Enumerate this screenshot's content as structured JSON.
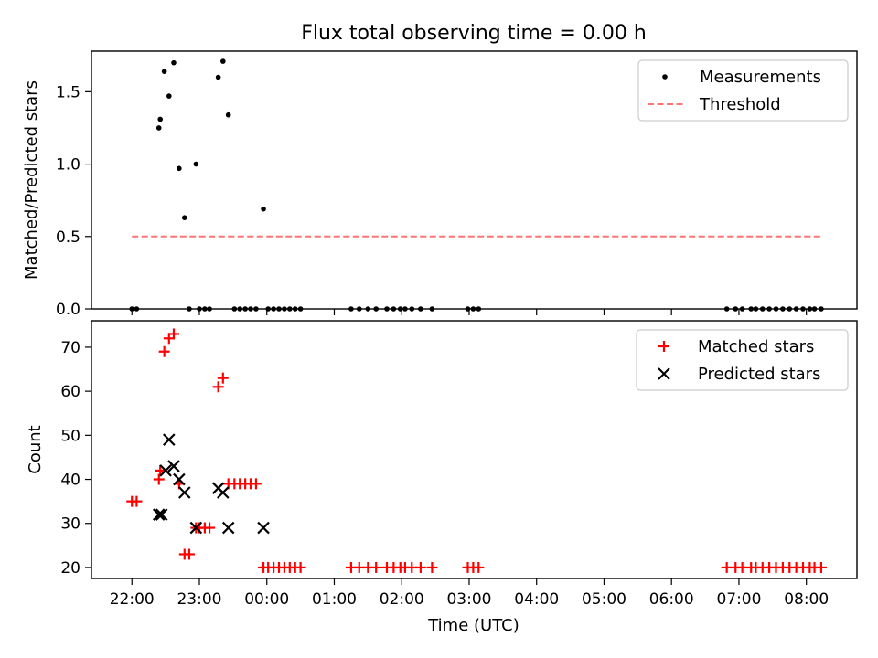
{
  "chart_data": [
    {
      "type": "scatter",
      "title": "Flux total observing time = 0.00 h",
      "xlabel": "",
      "ylabel": "Matched/Predicted stars",
      "x_unit": "hours from 00:00 UTC",
      "xlim": [
        -2.6,
        8.75
      ],
      "ylim": [
        0,
        1.78
      ],
      "yticks": [
        0.0,
        0.5,
        1.0,
        1.5
      ],
      "ytick_labels": [
        "0.0",
        "0.5",
        "1.0",
        "1.5"
      ],
      "legend_location": "upper right",
      "grid": false,
      "series": [
        {
          "name": "Measurements",
          "color": "#000000",
          "marker": "dot",
          "points": [
            [
              -2.0,
              0.0
            ],
            [
              -1.93,
              0.0
            ],
            [
              -1.6,
              1.25
            ],
            [
              -1.58,
              1.31
            ],
            [
              -1.52,
              1.64
            ],
            [
              -1.45,
              1.47
            ],
            [
              -1.38,
              1.7
            ],
            [
              -1.3,
              0.97
            ],
            [
              -1.22,
              0.63
            ],
            [
              -1.15,
              0.0
            ],
            [
              -1.05,
              1.0
            ],
            [
              -1.0,
              0.0
            ],
            [
              -0.92,
              0.0
            ],
            [
              -0.85,
              0.0
            ],
            [
              -0.72,
              1.6
            ],
            [
              -0.65,
              1.71
            ],
            [
              -0.57,
              1.34
            ],
            [
              -0.48,
              0.0
            ],
            [
              -0.4,
              0.0
            ],
            [
              -0.32,
              0.0
            ],
            [
              -0.24,
              0.0
            ],
            [
              -0.16,
              0.0
            ],
            [
              -0.05,
              0.69
            ],
            [
              0.02,
              0.0
            ],
            [
              0.1,
              0.0
            ],
            [
              0.18,
              0.0
            ],
            [
              0.26,
              0.0
            ],
            [
              0.34,
              0.0
            ],
            [
              0.42,
              0.0
            ],
            [
              0.5,
              0.0
            ],
            [
              1.25,
              0.0
            ],
            [
              1.37,
              0.0
            ],
            [
              1.5,
              0.0
            ],
            [
              1.62,
              0.0
            ],
            [
              1.78,
              0.0
            ],
            [
              1.88,
              0.0
            ],
            [
              1.98,
              0.0
            ],
            [
              2.05,
              0.0
            ],
            [
              2.15,
              0.0
            ],
            [
              2.28,
              0.0
            ],
            [
              2.45,
              0.0
            ],
            [
              2.98,
              0.0
            ],
            [
              3.06,
              0.0
            ],
            [
              3.14,
              0.0
            ],
            [
              6.82,
              0.0
            ],
            [
              6.95,
              0.0
            ],
            [
              7.05,
              0.0
            ],
            [
              7.18,
              0.0
            ],
            [
              7.25,
              0.0
            ],
            [
              7.35,
              0.0
            ],
            [
              7.45,
              0.0
            ],
            [
              7.55,
              0.0
            ],
            [
              7.65,
              0.0
            ],
            [
              7.75,
              0.0
            ],
            [
              7.85,
              0.0
            ],
            [
              7.95,
              0.0
            ],
            [
              8.05,
              0.0
            ],
            [
              8.12,
              0.0
            ],
            [
              8.22,
              0.0
            ]
          ]
        },
        {
          "name": "Threshold",
          "color": "#ff7373",
          "line_style": "dashed",
          "points": [
            [
              -2.0,
              0.5
            ],
            [
              8.22,
              0.5
            ]
          ]
        }
      ]
    },
    {
      "type": "scatter",
      "title": "",
      "xlabel": "Time (UTC)",
      "ylabel": "Count",
      "x_unit": "hours from 00:00 UTC",
      "xlim": [
        -2.6,
        8.75
      ],
      "ylim": [
        17.5,
        76
      ],
      "xticks": [
        -2,
        -1,
        0,
        1,
        2,
        3,
        4,
        5,
        6,
        7,
        8
      ],
      "xtick_labels": [
        "22:00",
        "23:00",
        "00:00",
        "01:00",
        "02:00",
        "03:00",
        "04:00",
        "05:00",
        "06:00",
        "07:00",
        "08:00"
      ],
      "yticks": [
        20,
        30,
        40,
        50,
        60,
        70
      ],
      "ytick_labels": [
        "20",
        "30",
        "40",
        "50",
        "60",
        "70"
      ],
      "legend_location": "upper right",
      "grid": false,
      "series": [
        {
          "name": "Matched stars",
          "color": "#ff0000",
          "marker": "plus",
          "points": [
            [
              -2.0,
              35
            ],
            [
              -1.93,
              35
            ],
            [
              -1.6,
              40
            ],
            [
              -1.58,
              42
            ],
            [
              -1.52,
              69
            ],
            [
              -1.45,
              72
            ],
            [
              -1.38,
              73
            ],
            [
              -1.3,
              39
            ],
            [
              -1.22,
              23
            ],
            [
              -1.15,
              23
            ],
            [
              -1.05,
              29
            ],
            [
              -1.0,
              29
            ],
            [
              -0.92,
              29
            ],
            [
              -0.85,
              29
            ],
            [
              -0.72,
              61
            ],
            [
              -0.65,
              63
            ],
            [
              -0.57,
              39
            ],
            [
              -0.48,
              39
            ],
            [
              -0.4,
              39
            ],
            [
              -0.32,
              39
            ],
            [
              -0.24,
              39
            ],
            [
              -0.16,
              39
            ],
            [
              -0.05,
              20
            ],
            [
              0.02,
              20
            ],
            [
              0.1,
              20
            ],
            [
              0.18,
              20
            ],
            [
              0.26,
              20
            ],
            [
              0.34,
              20
            ],
            [
              0.42,
              20
            ],
            [
              0.5,
              20
            ],
            [
              1.25,
              20
            ],
            [
              1.37,
              20
            ],
            [
              1.5,
              20
            ],
            [
              1.62,
              20
            ],
            [
              1.78,
              20
            ],
            [
              1.88,
              20
            ],
            [
              1.98,
              20
            ],
            [
              2.05,
              20
            ],
            [
              2.15,
              20
            ],
            [
              2.28,
              20
            ],
            [
              2.45,
              20
            ],
            [
              2.98,
              20
            ],
            [
              3.06,
              20
            ],
            [
              3.14,
              20
            ],
            [
              6.82,
              20
            ],
            [
              6.95,
              20
            ],
            [
              7.05,
              20
            ],
            [
              7.18,
              20
            ],
            [
              7.25,
              20
            ],
            [
              7.35,
              20
            ],
            [
              7.45,
              20
            ],
            [
              7.55,
              20
            ],
            [
              7.65,
              20
            ],
            [
              7.75,
              20
            ],
            [
              7.85,
              20
            ],
            [
              7.95,
              20
            ],
            [
              8.05,
              20
            ],
            [
              8.12,
              20
            ],
            [
              8.22,
              20
            ]
          ]
        },
        {
          "name": "Predicted stars",
          "color": "#000000",
          "marker": "x",
          "points": [
            [
              -1.6,
              32
            ],
            [
              -1.56,
              32
            ],
            [
              -1.5,
              42
            ],
            [
              -1.45,
              49
            ],
            [
              -1.38,
              43
            ],
            [
              -1.3,
              40
            ],
            [
              -1.22,
              37
            ],
            [
              -1.05,
              29
            ],
            [
              -0.72,
              38
            ],
            [
              -0.65,
              37
            ],
            [
              -0.57,
              29
            ],
            [
              -0.05,
              29
            ]
          ]
        }
      ]
    }
  ]
}
